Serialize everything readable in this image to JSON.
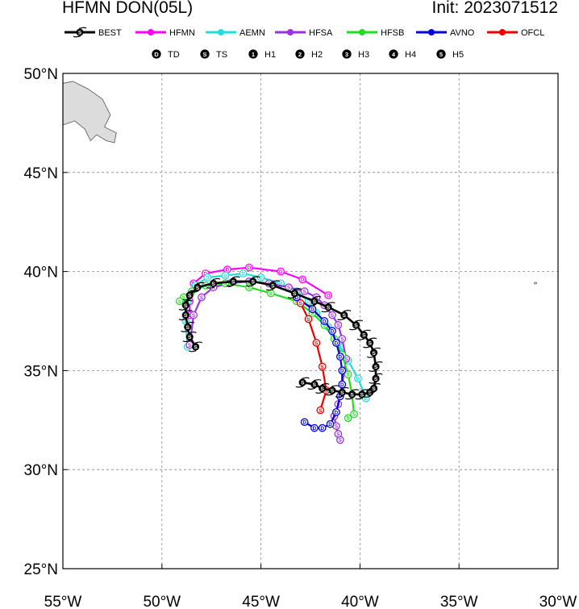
{
  "header": {
    "title": "HFMN DON(05L)",
    "init": "Init: 2023071512"
  },
  "legend": {
    "models": [
      {
        "name": "BEST",
        "color": "#000000"
      },
      {
        "name": "HFMN",
        "color": "#ff00ff"
      },
      {
        "name": "AEMN",
        "color": "#22dddd"
      },
      {
        "name": "HFSA",
        "color": "#9933dd"
      },
      {
        "name": "HFSB",
        "color": "#22dd22"
      },
      {
        "name": "AVNO",
        "color": "#0000dd"
      },
      {
        "name": "OFCL",
        "color": "#ee0000"
      }
    ],
    "intensity": [
      {
        "symbol": "D",
        "label": "TD"
      },
      {
        "symbol": "S",
        "label": "TS"
      },
      {
        "symbol": "1",
        "label": "H1"
      },
      {
        "symbol": "2",
        "label": "H2"
      },
      {
        "symbol": "3",
        "label": "H3"
      },
      {
        "symbol": "4",
        "label": "H4"
      },
      {
        "symbol": "5",
        "label": "H5"
      }
    ]
  },
  "axes": {
    "lon_range": [
      -55,
      -30
    ],
    "lat_range": [
      25,
      50
    ],
    "lon_ticks": [
      -55,
      -50,
      -45,
      -40,
      -35,
      -30
    ],
    "lon_tick_labels": [
      "55°W",
      "50°W",
      "45°W",
      "40°W",
      "35°W",
      "30°W"
    ],
    "lat_ticks": [
      25,
      30,
      35,
      40,
      45,
      50
    ],
    "lat_tick_labels": [
      "25°N",
      "30°N",
      "35°N",
      "40°N",
      "45°N",
      "50°N"
    ],
    "grid": "dashed"
  },
  "chart_data": {
    "type": "line",
    "x_unit": "longitude (deg)",
    "y_unit": "latitude (deg)",
    "series": [
      {
        "name": "HFMN",
        "color": "#ff00ff",
        "marker": "D",
        "lon": [
          -41.6,
          -42.9,
          -44.0,
          -45.6,
          -46.7,
          -47.8,
          -48.4,
          -48.6,
          -48.6
        ],
        "lat": [
          38.8,
          39.6,
          40.0,
          40.2,
          40.1,
          39.9,
          39.4,
          38.5,
          37.8
        ]
      },
      {
        "name": "AEMN",
        "color": "#22dddd",
        "marker": "D",
        "lon": [
          -39.7,
          -40.1,
          -40.6,
          -41.1,
          -41.6,
          -42.2,
          -42.6,
          -43.2,
          -44.0,
          -45.0,
          -45.9,
          -46.8,
          -47.7,
          -48.3,
          -48.7,
          -48.8,
          -48.7
        ],
        "lat": [
          33.6,
          34.6,
          35.5,
          36.4,
          37.2,
          37.9,
          38.5,
          39.0,
          39.4,
          39.7,
          39.9,
          39.8,
          39.7,
          39.3,
          38.5,
          37.5,
          36.2
        ]
      },
      {
        "name": "HFSA",
        "color": "#9933dd",
        "marker": "S",
        "lon": [
          -41.0,
          -41.1,
          -41.2,
          -41.3,
          -41.1,
          -40.9,
          -40.7,
          -40.9,
          -41.1,
          -41.4,
          -41.8,
          -42.2,
          -42.8,
          -43.6,
          -44.6,
          -45.6,
          -46.6,
          -47.4,
          -48.0,
          -48.4,
          -48.6
        ],
        "lat": [
          31.5,
          31.8,
          32.2,
          32.7,
          33.3,
          34.3,
          35.6,
          36.6,
          37.3,
          37.8,
          38.3,
          38.7,
          39.0,
          39.2,
          39.4,
          39.5,
          39.4,
          39.2,
          38.7,
          37.8,
          36.3
        ]
      },
      {
        "name": "HFSB",
        "color": "#22dd22",
        "marker": "S",
        "lon": [
          -40.6,
          -40.3,
          -40.4,
          -40.6,
          -40.9,
          -41.3,
          -41.8,
          -42.4,
          -43.2,
          -44.5,
          -45.6,
          -46.8,
          -47.8,
          -48.5,
          -48.9,
          -49.1
        ],
        "lat": [
          32.6,
          32.8,
          33.8,
          34.8,
          35.8,
          36.6,
          37.3,
          37.9,
          38.5,
          38.9,
          39.2,
          39.4,
          39.3,
          39.0,
          38.7,
          38.5
        ]
      },
      {
        "name": "AVNO",
        "color": "#0000dd",
        "marker": "D",
        "lon": [
          -42.8,
          -42.3,
          -41.9,
          -41.5,
          -41.2,
          -41.0,
          -40.9,
          -40.9,
          -41.0,
          -41.2,
          -41.4,
          -41.8,
          -42.4,
          -43.2
        ],
        "lat": [
          32.4,
          32.1,
          32.1,
          32.3,
          32.9,
          33.7,
          34.3,
          35.0,
          35.7,
          36.4,
          37.0,
          37.5,
          38.1,
          38.7
        ]
      },
      {
        "name": "OFCL",
        "color": "#ee0000",
        "marker": "S",
        "lon": [
          -42.0,
          -41.7,
          -41.9,
          -42.2,
          -42.6,
          -43.0
        ],
        "lat": [
          33.0,
          34.0,
          35.2,
          36.4,
          37.6,
          38.4
        ]
      },
      {
        "name": "BEST",
        "color": "#000000",
        "marker": "S",
        "lon": [
          -42.9,
          -42.3,
          -41.9,
          -41.4,
          -40.9,
          -40.4,
          -39.9,
          -39.5,
          -39.3,
          -39.2,
          -39.2,
          -39.3,
          -39.5,
          -39.8,
          -40.2,
          -40.8,
          -41.6,
          -42.3,
          -43.3,
          -44.4,
          -45.4,
          -46.4,
          -47.4,
          -48.2,
          -48.6,
          -48.8,
          -48.8,
          -48.7,
          -48.6,
          -48.3
        ],
        "lat": [
          34.4,
          34.3,
          34.1,
          34.0,
          33.9,
          33.8,
          33.8,
          33.9,
          34.1,
          34.6,
          35.2,
          35.9,
          36.4,
          36.8,
          37.3,
          37.8,
          38.2,
          38.5,
          38.9,
          39.3,
          39.5,
          39.5,
          39.4,
          39.2,
          38.8,
          38.3,
          37.8,
          37.2,
          36.7,
          36.2
        ]
      }
    ],
    "land": [
      {
        "name": "newfoundland",
        "lon": [
          -55,
          -54.5,
          -53.7,
          -53.0,
          -52.6,
          -52.9,
          -52.3,
          -52.4,
          -52.8,
          -53.3,
          -53.6,
          -53.9,
          -54.4,
          -55.0
        ],
        "lat": [
          49.5,
          49.6,
          49.2,
          48.7,
          47.9,
          47.3,
          47.0,
          46.5,
          46.6,
          46.9,
          46.6,
          47.2,
          47.6,
          47.4
        ]
      }
    ]
  }
}
